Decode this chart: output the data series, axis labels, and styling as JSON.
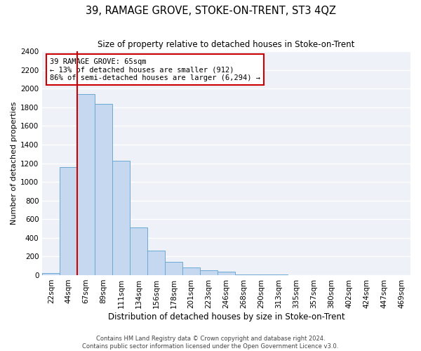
{
  "title": "39, RAMAGE GROVE, STOKE-ON-TRENT, ST3 4QZ",
  "subtitle": "Size of property relative to detached houses in Stoke-on-Trent",
  "xlabel": "Distribution of detached houses by size in Stoke-on-Trent",
  "ylabel": "Number of detached properties",
  "bin_labels": [
    "22sqm",
    "44sqm",
    "67sqm",
    "89sqm",
    "111sqm",
    "134sqm",
    "156sqm",
    "178sqm",
    "201sqm",
    "223sqm",
    "246sqm",
    "268sqm",
    "290sqm",
    "313sqm",
    "335sqm",
    "357sqm",
    "380sqm",
    "402sqm",
    "424sqm",
    "447sqm",
    "469sqm"
  ],
  "bar_heights": [
    25,
    1155,
    1940,
    1835,
    1225,
    510,
    265,
    145,
    80,
    55,
    40,
    10,
    5,
    5,
    3,
    2,
    2,
    2,
    1,
    1,
    1
  ],
  "bar_color": "#c5d8f0",
  "bar_edge_color": "#6aaad4",
  "vline_color": "#cc0000",
  "annotation_text": "39 RAMAGE GROVE: 65sqm\n← 13% of detached houses are smaller (912)\n86% of semi-detached houses are larger (6,294) →",
  "annotation_box_facecolor": "#ffffff",
  "annotation_box_edgecolor": "#cc0000",
  "ylim": [
    0,
    2400
  ],
  "yticks": [
    0,
    200,
    400,
    600,
    800,
    1000,
    1200,
    1400,
    1600,
    1800,
    2000,
    2200,
    2400
  ],
  "footer_line1": "Contains HM Land Registry data © Crown copyright and database right 2024.",
  "footer_line2": "Contains public sector information licensed under the Open Government Licence v3.0.",
  "bg_color": "#ffffff",
  "plot_bg_color": "#eef2f8",
  "grid_color": "#ffffff",
  "title_fontsize": 10.5,
  "subtitle_fontsize": 8.5,
  "xlabel_fontsize": 8.5,
  "ylabel_fontsize": 8,
  "tick_fontsize": 7.5,
  "footer_fontsize": 6.0,
  "vline_x_index": 2
}
